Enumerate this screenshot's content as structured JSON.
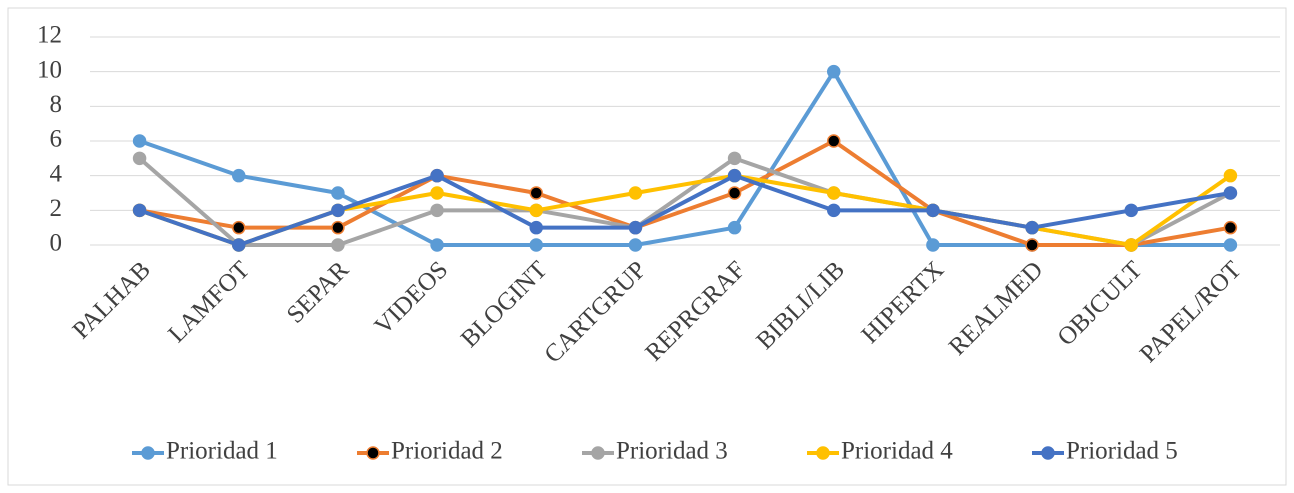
{
  "chart_data": {
    "type": "line",
    "categories": [
      "PALHAB",
      "LAMFOT",
      "SEPAR",
      "VIDEOS",
      "BLOGINT",
      "CARTGRUP",
      "REPRGRAF",
      "BIBLI/LIB",
      "HIPERTX",
      "REALMED",
      "OBJCULT",
      "PAPEL/ROT"
    ],
    "series": [
      {
        "name": "Prioridad 1",
        "color": "#5b9bd5",
        "values": [
          6,
          4,
          3,
          0,
          0,
          0,
          1,
          10,
          0,
          0,
          0,
          0
        ]
      },
      {
        "name": "Prioridad 2",
        "color": "#ed7d31",
        "marker_fill": "#000000",
        "values": [
          2,
          1,
          1,
          4,
          3,
          1,
          3,
          6,
          2,
          0,
          0,
          1
        ]
      },
      {
        "name": "Prioridad 3",
        "color": "#a5a5a5",
        "values": [
          5,
          0,
          0,
          2,
          2,
          1,
          5,
          3,
          2,
          1,
          0,
          3
        ]
      },
      {
        "name": "Prioridad 4",
        "color": "#ffc000",
        "values": [
          2,
          0,
          2,
          3,
          2,
          3,
          4,
          3,
          2,
          1,
          0,
          4
        ]
      },
      {
        "name": "Prioridad 5",
        "color": "#4472c4",
        "values": [
          2,
          0,
          2,
          4,
          1,
          1,
          4,
          2,
          2,
          1,
          2,
          3
        ]
      }
    ],
    "ylim": [
      0,
      12
    ],
    "yticks": [
      0,
      2,
      4,
      6,
      8,
      10,
      12
    ],
    "grid": true,
    "legend": "bottom"
  }
}
